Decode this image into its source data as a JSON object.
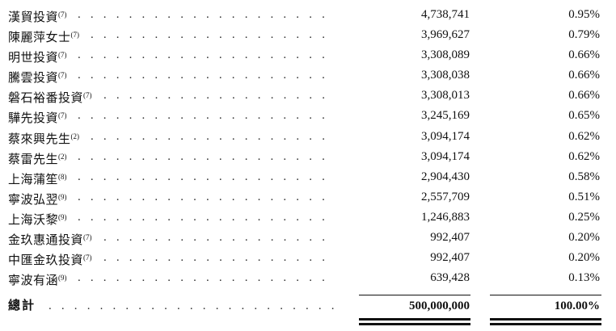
{
  "rows": [
    {
      "name": "漢貿投資",
      "note": "(7)",
      "shares": "4,738,741",
      "pct": "0.95%"
    },
    {
      "name": "陳麗萍女士",
      "note": "(7)",
      "shares": "3,969,627",
      "pct": "0.79%"
    },
    {
      "name": "明世投資",
      "note": "(7)",
      "shares": "3,308,089",
      "pct": "0.66%"
    },
    {
      "name": "騰雲投資",
      "note": "(7)",
      "shares": "3,308,038",
      "pct": "0.66%"
    },
    {
      "name": "磐石裕番投資",
      "note": "(7)",
      "shares": "3,308,013",
      "pct": "0.66%"
    },
    {
      "name": "驊先投資",
      "note": "(7)",
      "shares": "3,245,169",
      "pct": "0.65%"
    },
    {
      "name": "蔡來興先生",
      "note": "(2)",
      "shares": "3,094,174",
      "pct": "0.62%"
    },
    {
      "name": "蔡雷先生",
      "note": "(2)",
      "shares": "3,094,174",
      "pct": "0.62%"
    },
    {
      "name": "上海蒲笙",
      "note": "(8)",
      "shares": "2,904,430",
      "pct": "0.58%"
    },
    {
      "name": "寧波弘翌",
      "note": "(9)",
      "shares": "2,557,709",
      "pct": "0.51%"
    },
    {
      "name": "上海沃黎",
      "note": "(9)",
      "shares": "1,246,883",
      "pct": "0.25%"
    },
    {
      "name": "金玖惠通投資",
      "note": "(7)",
      "shares": "992,407",
      "pct": "0.20%"
    },
    {
      "name": "中匯金玖投資",
      "note": "(7)",
      "shares": "992,407",
      "pct": "0.20%"
    },
    {
      "name": "寧波有涵",
      "note": "(9)",
      "shares": "639,428",
      "pct": "0.13%"
    }
  ],
  "total": {
    "name": "總計",
    "shares": "500,000,000",
    "pct": "100.00%"
  },
  "leader_dots": ". . . . . . . . . . . . . . . . . . . . . . . . . . . . . . . . . . . . . . . . . . . ."
}
